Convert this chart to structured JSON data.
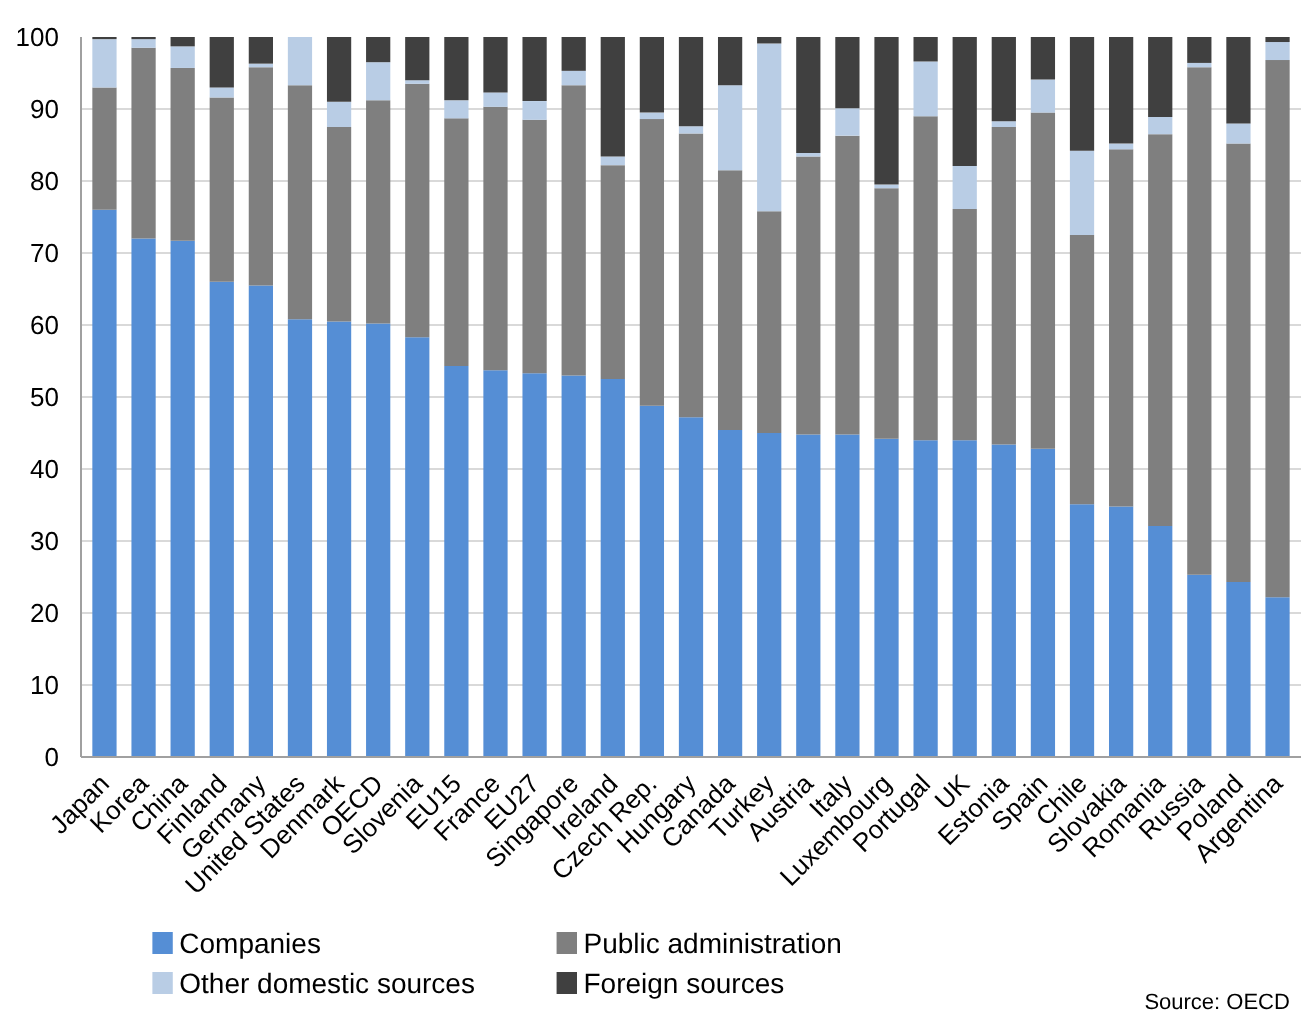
{
  "chart_data": {
    "type": "bar",
    "stacked": true,
    "categories": [
      "Japan",
      "Korea",
      "China",
      "Finland",
      "Germany",
      "United States",
      "Denmark",
      "OECD",
      "Slovenia",
      "EU15",
      "France",
      "EU27",
      "Singapore",
      "Ireland",
      "Czech Rep.",
      "Hungary",
      "Canada",
      "Turkey",
      "Austria",
      "Italy",
      "Luxembourg",
      "Portugal",
      "UK",
      "Estonia",
      "Spain",
      "Chile",
      "Slovakia",
      "Romania",
      "Russia",
      "Poland",
      "Argentina"
    ],
    "series": [
      {
        "name": "Companies",
        "color": "#558ed5",
        "values": [
          76,
          72,
          71.7,
          66,
          65.5,
          60.8,
          60.5,
          60.2,
          58.3,
          54.3,
          53.7,
          53.3,
          53,
          52.5,
          48.8,
          47.2,
          45.4,
          45,
          44.8,
          44.8,
          44.2,
          44,
          44,
          43.4,
          42.8,
          35.1,
          34.8,
          32.1,
          25.3,
          24.3,
          22.2
        ]
      },
      {
        "name": "Public administration",
        "color": "#7f7f7f",
        "values": [
          17,
          26.5,
          24,
          25.6,
          30.3,
          32.5,
          27,
          31,
          35.2,
          34.4,
          36.6,
          35.2,
          40.3,
          29.7,
          39.8,
          39.4,
          36.1,
          30.8,
          38.6,
          41.5,
          34.8,
          45,
          32.1,
          44.1,
          46.7,
          37.4,
          49.6,
          54.4,
          70.5,
          60.9,
          74.6
        ]
      },
      {
        "name": "Other domestic sources",
        "color": "#b9cde5",
        "values": [
          6.7,
          1.2,
          3,
          1.4,
          0.5,
          6.7,
          3.5,
          5.3,
          0.5,
          2.5,
          2,
          2.6,
          2,
          1.2,
          0.9,
          1,
          11.8,
          23.3,
          0.5,
          3.8,
          0.5,
          7.6,
          6,
          0.8,
          4.6,
          11.7,
          0.8,
          2.4,
          0.6,
          2.8,
          2.5
        ]
      },
      {
        "name": "Foreign sources",
        "color": "#404040",
        "values": [
          0.3,
          0.3,
          1.3,
          7,
          3.7,
          0,
          9,
          3.5,
          6,
          8.8,
          7.7,
          8.9,
          4.7,
          16.6,
          10.5,
          12.4,
          6.7,
          0.9,
          16.1,
          9.9,
          20.5,
          3.4,
          17.9,
          11.7,
          5.9,
          15.8,
          14.8,
          11.1,
          3.6,
          12,
          0.7
        ]
      }
    ],
    "ylim": [
      0,
      100
    ],
    "yticks": [
      0,
      10,
      20,
      30,
      40,
      50,
      60,
      70,
      80,
      90,
      100
    ],
    "grid": "y",
    "legend": "bottom",
    "annotations": [
      "Source: OECD"
    ]
  }
}
